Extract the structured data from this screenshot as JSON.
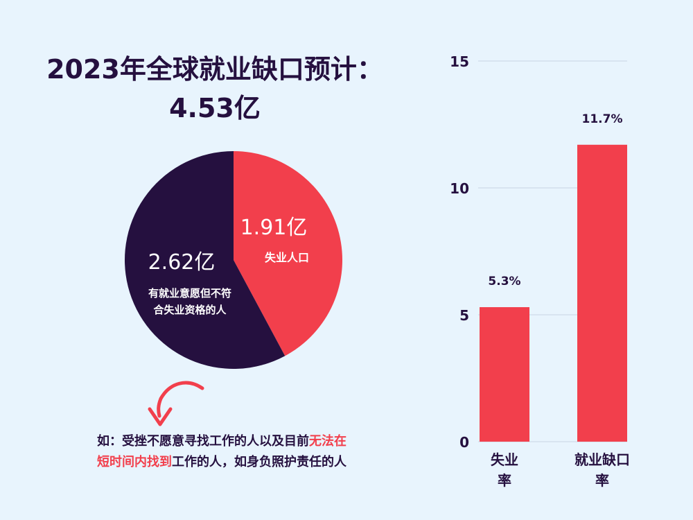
{
  "header": {
    "title_line1": "2023年全球就业缺口预计：",
    "title_line2": "4.53亿"
  },
  "note": {
    "part1": "如：受挫不愿意寻找工作的人以及目前",
    "hl1": "无法在",
    "hl2": "短时间内找到",
    "part2": "工作的人，如身负照护责任的人"
  },
  "colors": {
    "navy": "#25103f",
    "red": "#f23f4c",
    "background": "#e8f4fd"
  },
  "icons": [
    "curved-arrow-icon"
  ],
  "chart_data": [
    {
      "type": "pie",
      "slices": [
        {
          "value_label": "1.91亿",
          "label": "失业人口",
          "value": 1.91,
          "color": "#f23f4c"
        },
        {
          "value_label": "2.62亿",
          "label_lines": [
            "有就业意愿但不符",
            "合失业资格的人"
          ],
          "value": 2.62,
          "color": "#25103f"
        }
      ]
    },
    {
      "type": "bar",
      "categories": [
        [
          "失业",
          "率"
        ],
        [
          "就业缺口",
          "率"
        ]
      ],
      "values": [
        5.3,
        11.7
      ],
      "data_labels": [
        "5.3%",
        "11.7%"
      ],
      "ylim": [
        0,
        15
      ],
      "yticks": [
        0,
        5,
        10,
        15
      ],
      "grid": true,
      "color": "#f23f4c"
    }
  ]
}
